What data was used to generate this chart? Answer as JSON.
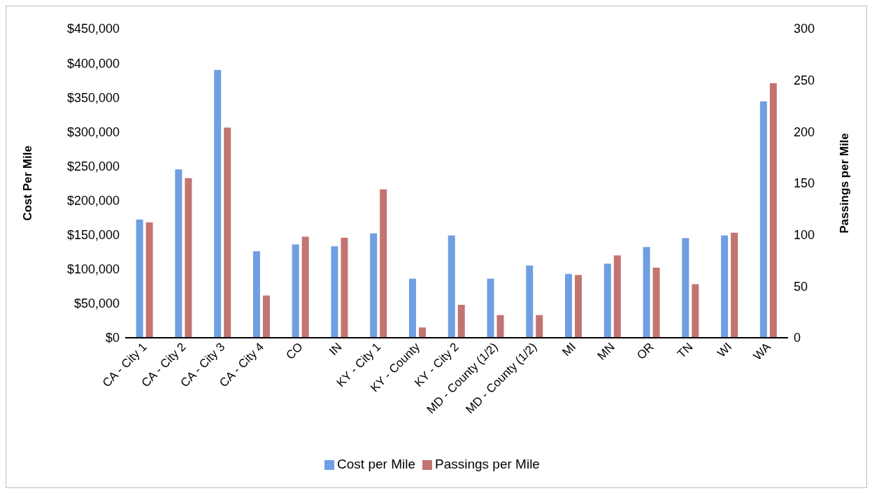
{
  "chart_data": {
    "type": "bar",
    "ylabel": "Cost Per Mile",
    "y2label": "Passings per Mile",
    "categories": [
      "CA - City 1",
      "CA - City 2",
      "CA - City 3",
      "CA - City 4",
      "CO",
      "IN",
      "KY - City 1",
      "KY - County",
      "KY - City 2",
      "MD - County (1/2)",
      "MD - County (1/2)",
      "MI",
      "MN",
      "OR",
      "TN",
      "WI",
      "WA"
    ],
    "series": [
      {
        "name": "Cost per Mile",
        "color": "#6f9fe2",
        "values": [
          172000,
          245000,
          390000,
          126000,
          136000,
          133000,
          152000,
          86000,
          149000,
          86000,
          105000,
          93000,
          108000,
          132000,
          145000,
          149000,
          344000
        ]
      },
      {
        "name": "Passings per Mile",
        "color": "#c27471",
        "axis": "y2",
        "values": [
          112,
          155,
          204,
          41,
          98,
          97,
          144,
          10,
          32,
          22,
          22,
          61,
          80,
          68,
          52,
          102,
          247
        ]
      }
    ],
    "ylim": [
      0,
      450000
    ],
    "yticks": [
      {
        "value": 0,
        "label": "$0"
      },
      {
        "value": 50000,
        "label": "$50,000"
      },
      {
        "value": 100000,
        "label": "$100,000"
      },
      {
        "value": 150000,
        "label": "$150,000"
      },
      {
        "value": 200000,
        "label": "$200,000"
      },
      {
        "value": 250000,
        "label": "$250,000"
      },
      {
        "value": 300000,
        "label": "$300,000"
      },
      {
        "value": 350000,
        "label": "$350,000"
      },
      {
        "value": 400000,
        "label": "$400,000"
      },
      {
        "value": 450000,
        "label": "$450,000"
      }
    ],
    "y2lim": [
      0,
      300
    ],
    "y2ticks": [
      0,
      50,
      100,
      150,
      200,
      250,
      300
    ],
    "grid": false,
    "legend": "bottom"
  }
}
